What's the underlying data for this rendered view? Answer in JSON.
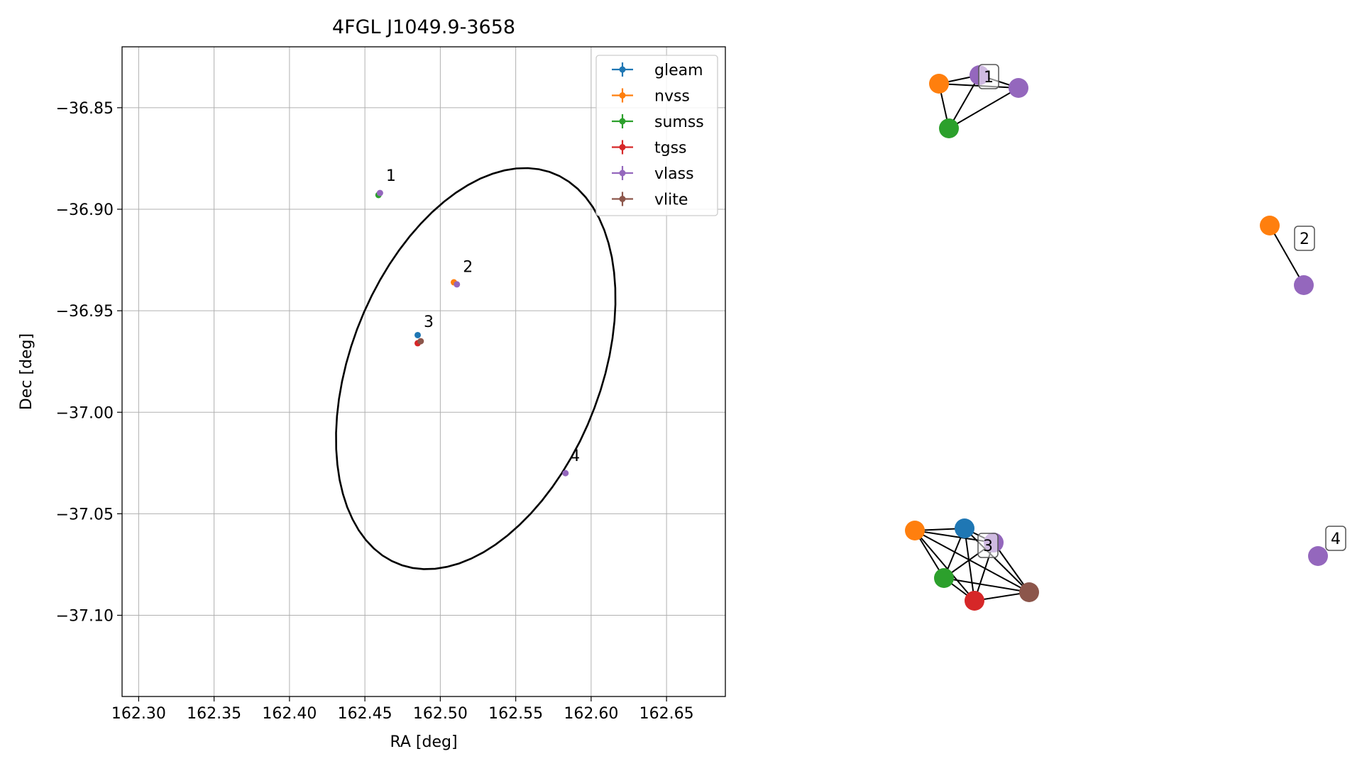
{
  "chart_data": [
    {
      "type": "scatter",
      "title": "4FGL J1049.9-3658",
      "xlabel": "RA [deg]",
      "ylabel": "Dec [deg]",
      "xlim": [
        162.289,
        162.689
      ],
      "ylim": [
        -37.14,
        -36.82
      ],
      "xticks": [
        162.3,
        162.35,
        162.4,
        162.45,
        162.5,
        162.55,
        162.6,
        162.65
      ],
      "xtick_labels": [
        "162.30",
        "162.35",
        "162.40",
        "162.45",
        "162.50",
        "162.55",
        "162.60",
        "162.65"
      ],
      "yticks": [
        -36.85,
        -36.9,
        -36.95,
        -37.0,
        -37.05,
        -37.1
      ],
      "ytick_labels": [
        "−36.85",
        "−36.90",
        "−36.95",
        "−37.00",
        "−37.05",
        "−37.10"
      ],
      "grid": true,
      "legend_position": "top-right",
      "series": [
        {
          "name": "gleam",
          "color": "#1f77b4",
          "points": [
            {
              "x": 162.485,
              "y": -36.962
            }
          ]
        },
        {
          "name": "nvss",
          "color": "#ff7f0e",
          "points": [
            {
              "x": 162.509,
              "y": -36.936
            }
          ]
        },
        {
          "name": "sumss",
          "color": "#2ca02c",
          "points": [
            {
              "x": 162.459,
              "y": -36.893
            }
          ]
        },
        {
          "name": "tgss",
          "color": "#d62728",
          "points": [
            {
              "x": 162.485,
              "y": -36.966
            }
          ]
        },
        {
          "name": "vlass",
          "color": "#9467bd",
          "points": [
            {
              "x": 162.46,
              "y": -36.892
            },
            {
              "x": 162.511,
              "y": -36.937
            },
            {
              "x": 162.583,
              "y": -37.03
            }
          ]
        },
        {
          "name": "vlite",
          "color": "#8c564b",
          "points": [
            {
              "x": 162.487,
              "y": -36.965
            }
          ]
        }
      ],
      "annotations": [
        {
          "text": "1",
          "x": 162.464,
          "y": -36.886
        },
        {
          "text": "2",
          "x": 162.515,
          "y": -36.931
        },
        {
          "text": "3",
          "x": 162.489,
          "y": -36.958
        },
        {
          "text": "4",
          "x": 162.586,
          "y": -37.024
        }
      ],
      "ellipse": {
        "center_ra": 162.5235,
        "center_dec": -36.9785,
        "semi_major": 0.1047,
        "semi_minor": 0.0654,
        "pa_deg": 25.1,
        "color": "#000000"
      }
    },
    {
      "type": "network",
      "groups": [
        {
          "label": "1",
          "nodes": [
            {
              "id": "1a",
              "series": "nvss",
              "color": "#ff7f0e"
            },
            {
              "id": "1b",
              "series": "vlass",
              "color": "#9467bd"
            },
            {
              "id": "1c",
              "series": "vlass",
              "color": "#9467bd"
            },
            {
              "id": "1d",
              "series": "sumss",
              "color": "#2ca02c"
            }
          ],
          "edges": [
            [
              "1a",
              "1b"
            ],
            [
              "1a",
              "1c"
            ],
            [
              "1a",
              "1d"
            ],
            [
              "1b",
              "1d"
            ],
            [
              "1c",
              "1d"
            ],
            [
              "1b",
              "1c"
            ]
          ]
        },
        {
          "label": "2",
          "nodes": [
            {
              "id": "2a",
              "series": "nvss",
              "color": "#ff7f0e"
            },
            {
              "id": "2b",
              "series": "vlass",
              "color": "#9467bd"
            }
          ],
          "edges": [
            [
              "2a",
              "2b"
            ]
          ]
        },
        {
          "label": "3",
          "nodes": [
            {
              "id": "3a",
              "series": "nvss",
              "color": "#ff7f0e"
            },
            {
              "id": "3b",
              "series": "gleam",
              "color": "#1f77b4"
            },
            {
              "id": "3c",
              "series": "vlass",
              "color": "#9467bd"
            },
            {
              "id": "3d",
              "series": "sumss",
              "color": "#2ca02c"
            },
            {
              "id": "3e",
              "series": "tgss",
              "color": "#d62728"
            },
            {
              "id": "3f",
              "series": "vlite",
              "color": "#8c564b"
            }
          ],
          "edges": [
            [
              "3a",
              "3b"
            ],
            [
              "3a",
              "3c"
            ],
            [
              "3a",
              "3d"
            ],
            [
              "3a",
              "3e"
            ],
            [
              "3b",
              "3c"
            ],
            [
              "3b",
              "3d"
            ],
            [
              "3b",
              "3e"
            ],
            [
              "3b",
              "3f"
            ],
            [
              "3c",
              "3d"
            ],
            [
              "3c",
              "3e"
            ],
            [
              "3d",
              "3e"
            ],
            [
              "3d",
              "3f"
            ],
            [
              "3e",
              "3f"
            ],
            [
              "3a",
              "3f"
            ],
            [
              "3c",
              "3f"
            ]
          ]
        },
        {
          "label": "4",
          "nodes": [
            {
              "id": "4a",
              "series": "vlass",
              "color": "#9467bd"
            }
          ],
          "edges": []
        }
      ]
    }
  ]
}
